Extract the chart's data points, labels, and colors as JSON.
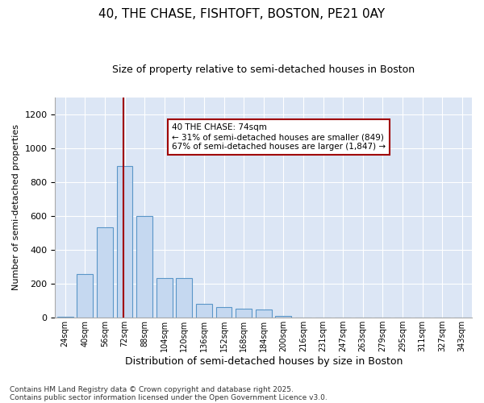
{
  "title1": "40, THE CHASE, FISHTOFT, BOSTON, PE21 0AY",
  "title2": "Size of property relative to semi-detached houses in Boston",
  "xlabel": "Distribution of semi-detached houses by size in Boston",
  "ylabel": "Number of semi-detached properties",
  "footnote1": "Contains HM Land Registry data © Crown copyright and database right 2025.",
  "footnote2": "Contains public sector information licensed under the Open Government Licence v3.0.",
  "annotation_title": "40 THE CHASE: 74sqm",
  "annotation_line1": "← 31% of semi-detached houses are smaller (849)",
  "annotation_line2": "67% of semi-detached houses are larger (1,847) →",
  "bar_color": "#c5d8f0",
  "bar_edge_color": "#5a96c8",
  "vline_color": "#a00000",
  "vline_x_index": 3,
  "background_color": "#dce6f5",
  "categories": [
    "24sqm",
    "40sqm",
    "56sqm",
    "72sqm",
    "88sqm",
    "104sqm",
    "120sqm",
    "136sqm",
    "152sqm",
    "168sqm",
    "184sqm",
    "200sqm",
    "216sqm",
    "231sqm",
    "247sqm",
    "263sqm",
    "279sqm",
    "295sqm",
    "311sqm",
    "327sqm",
    "343sqm"
  ],
  "values": [
    5,
    260,
    535,
    895,
    600,
    235,
    235,
    80,
    65,
    55,
    50,
    10,
    0,
    0,
    0,
    0,
    0,
    0,
    0,
    0,
    0
  ],
  "ylim": [
    0,
    1300
  ],
  "yticks": [
    0,
    200,
    400,
    600,
    800,
    1000,
    1200
  ],
  "figsize": [
    6.0,
    5.0
  ],
  "dpi": 100
}
